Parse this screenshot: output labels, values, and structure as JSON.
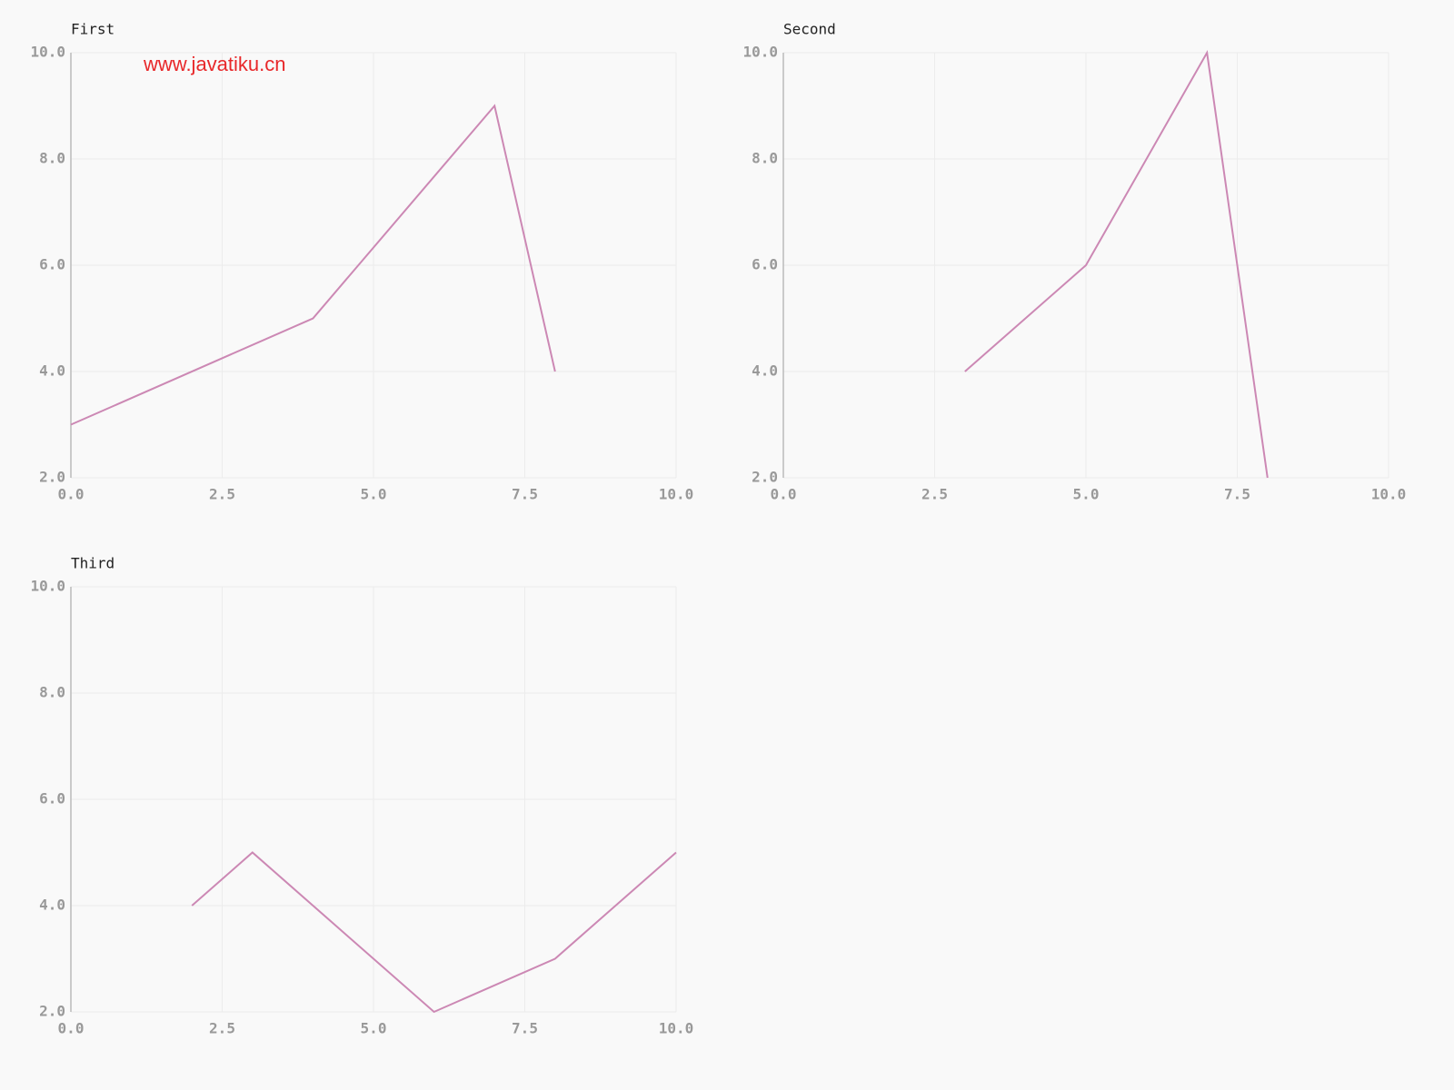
{
  "watermark": "www.javatiku.cn",
  "chart_data": [
    {
      "type": "line",
      "title": "First",
      "x": [
        0,
        4,
        7,
        8
      ],
      "values": [
        3,
        5,
        9,
        4
      ],
      "color": "#cc88b4",
      "xlim": [
        0,
        10
      ],
      "ylim": [
        2,
        10
      ],
      "grid": true,
      "xticks": [
        {
          "value": 0,
          "label": "0.0"
        },
        {
          "value": 2.5,
          "label": "2.5"
        },
        {
          "value": 5,
          "label": "5.0"
        },
        {
          "value": 7.5,
          "label": "7.5"
        },
        {
          "value": 10,
          "label": "10.0"
        }
      ],
      "yticks": [
        {
          "value": 2,
          "label": "2.0"
        },
        {
          "value": 4,
          "label": "4.0"
        },
        {
          "value": 6,
          "label": "6.0"
        },
        {
          "value": 8,
          "label": "8.0"
        },
        {
          "value": 10,
          "label": "10.0"
        }
      ]
    },
    {
      "type": "line",
      "title": "Second",
      "x": [
        3,
        5,
        7,
        8
      ],
      "values": [
        4,
        6,
        10,
        2
      ],
      "color": "#cc88b4",
      "xlim": [
        0,
        10
      ],
      "ylim": [
        2,
        10
      ],
      "grid": true,
      "xticks": [
        {
          "value": 0,
          "label": "0.0"
        },
        {
          "value": 2.5,
          "label": "2.5"
        },
        {
          "value": 5,
          "label": "5.0"
        },
        {
          "value": 7.5,
          "label": "7.5"
        },
        {
          "value": 10,
          "label": "10.0"
        }
      ],
      "yticks": [
        {
          "value": 2,
          "label": "2.0"
        },
        {
          "value": 4,
          "label": "4.0"
        },
        {
          "value": 6,
          "label": "6.0"
        },
        {
          "value": 8,
          "label": "8.0"
        },
        {
          "value": 10,
          "label": "10.0"
        }
      ]
    },
    {
      "type": "line",
      "title": "Third",
      "x": [
        2,
        3,
        6,
        8,
        10
      ],
      "values": [
        4,
        5,
        2,
        3,
        5
      ],
      "color": "#cc88b4",
      "xlim": [
        0,
        10
      ],
      "ylim": [
        2,
        10
      ],
      "grid": true,
      "xticks": [
        {
          "value": 0,
          "label": "0.0"
        },
        {
          "value": 2.5,
          "label": "2.5"
        },
        {
          "value": 5,
          "label": "5.0"
        },
        {
          "value": 7.5,
          "label": "7.5"
        },
        {
          "value": 10,
          "label": "10.0"
        }
      ],
      "yticks": [
        {
          "value": 2,
          "label": "2.0"
        },
        {
          "value": 4,
          "label": "4.0"
        },
        {
          "value": 6,
          "label": "6.0"
        },
        {
          "value": 8,
          "label": "8.0"
        },
        {
          "value": 10,
          "label": "10.0"
        }
      ]
    }
  ]
}
